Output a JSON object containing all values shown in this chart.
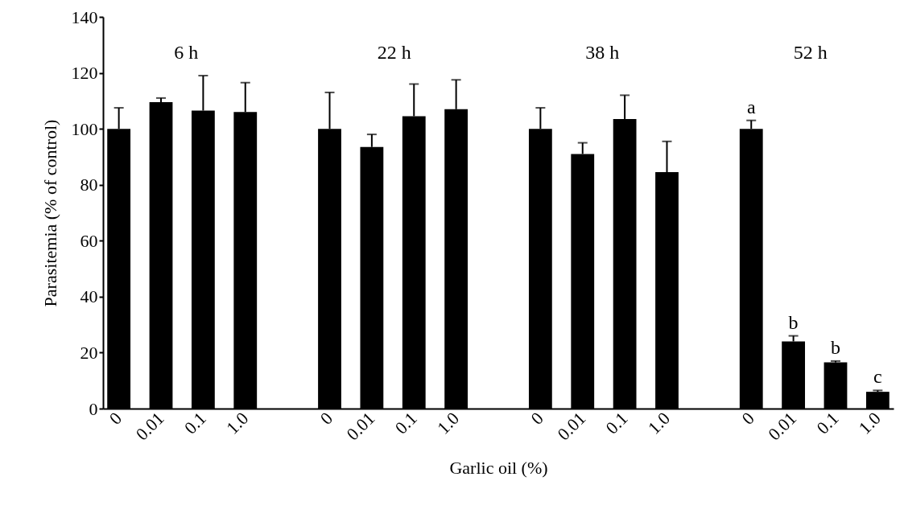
{
  "chart_data": {
    "type": "bar",
    "xlabel": "Garlic oil (%)",
    "ylabel": "Parasitemia (% of control)",
    "categories": [
      "0",
      "0.01",
      "0.1",
      "1.0",
      null,
      "0",
      "0.01",
      "0.1",
      "1.0",
      null,
      "0",
      "0.01",
      "0.1",
      "1.0",
      null,
      "0",
      "0.01",
      "0.1",
      "1.0"
    ],
    "values": [
      100,
      109.5,
      106.5,
      106,
      null,
      100,
      93.5,
      104.5,
      107,
      null,
      100,
      91,
      103.5,
      84.5,
      null,
      100,
      24,
      16.5,
      6
    ],
    "errors": [
      [
        100,
        107.5
      ],
      [
        109.5,
        111
      ],
      [
        106.5,
        119
      ],
      [
        106,
        116.5
      ],
      null,
      [
        100,
        113
      ],
      [
        93.5,
        98
      ],
      [
        104.5,
        116
      ],
      [
        107,
        117.5
      ],
      null,
      [
        100,
        107.5
      ],
      [
        91,
        95
      ],
      [
        103.5,
        112
      ],
      [
        84.5,
        95.5
      ],
      null,
      [
        100,
        103
      ],
      [
        24,
        26
      ],
      [
        16.5,
        17
      ],
      [
        6,
        6.5
      ]
    ],
    "value_labels": [
      null,
      null,
      null,
      null,
      null,
      null,
      null,
      null,
      null,
      null,
      null,
      null,
      null,
      null,
      null,
      "a",
      "b",
      "b",
      "c"
    ],
    "color": "#000000",
    "ylim": [
      0,
      140
    ],
    "yticks": [
      0,
      20,
      40,
      60,
      80,
      100,
      120,
      140
    ],
    "annotations": [
      "6 h",
      "22 h",
      "38 h",
      "52 h"
    ]
  }
}
